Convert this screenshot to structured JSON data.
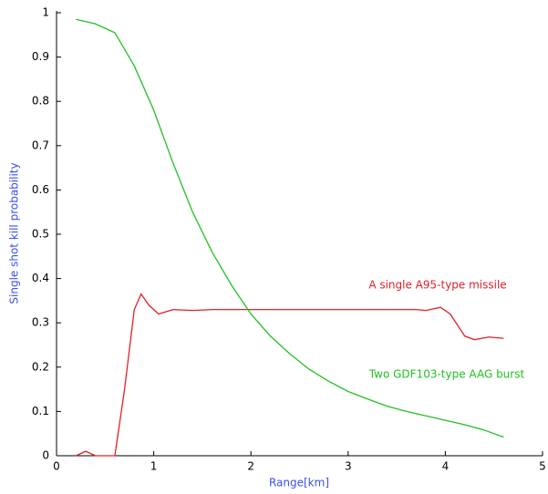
{
  "chart_data": {
    "type": "line",
    "xlabel": "Range[km]",
    "ylabel": "Single shot kill probability",
    "xlim": [
      0,
      5
    ],
    "xticks": [
      0,
      1,
      2,
      3,
      4,
      5
    ],
    "ylim": [
      0,
      1
    ],
    "yticks": [
      0,
      0.1,
      0.2,
      0.3,
      0.4,
      0.5,
      0.6,
      0.7,
      0.8,
      0.9,
      1
    ],
    "series": [
      {
        "name": "A single A95-type missile",
        "color": "#e0202a",
        "x": [
          0.2,
          0.3,
          0.4,
          0.6,
          0.7,
          0.8,
          0.87,
          0.95,
          1.05,
          1.2,
          1.4,
          1.6,
          2.0,
          3.0,
          3.7,
          3.8,
          3.95,
          4.05,
          4.2,
          4.3,
          4.45,
          4.6
        ],
        "values": [
          0,
          0.01,
          0,
          0,
          0.15,
          0.33,
          0.365,
          0.34,
          0.32,
          0.33,
          0.328,
          0.33,
          0.33,
          0.33,
          0.33,
          0.328,
          0.335,
          0.32,
          0.27,
          0.262,
          0.268,
          0.265
        ]
      },
      {
        "name": "Two GDF103-type AAG burst",
        "color": "#22c022",
        "x": [
          0.2,
          0.4,
          0.6,
          0.8,
          1.0,
          1.2,
          1.4,
          1.6,
          1.8,
          2.0,
          2.2,
          2.4,
          2.6,
          2.8,
          3.0,
          3.2,
          3.4,
          3.6,
          3.8,
          4.0,
          4.2,
          4.4,
          4.6
        ],
        "values": [
          0.985,
          0.975,
          0.955,
          0.88,
          0.78,
          0.66,
          0.55,
          0.46,
          0.385,
          0.32,
          0.27,
          0.23,
          0.195,
          0.168,
          0.145,
          0.128,
          0.112,
          0.1,
          0.09,
          0.08,
          0.07,
          0.058,
          0.042
        ]
      }
    ]
  }
}
